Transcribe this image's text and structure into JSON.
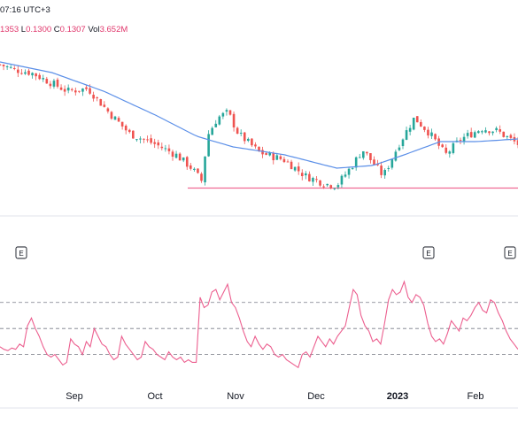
{
  "header": {
    "time": "07:16 UTC+3",
    "open_partial": "1353",
    "low_label": "L",
    "low": "0.1300",
    "close_label": "C",
    "close": "0.1307",
    "vol_label": "Vol",
    "vol": "3.652M"
  },
  "colors": {
    "up": "#26a69a",
    "down": "#ef5350",
    "ma": "#5b8fe8",
    "support": "#f06a93",
    "oscillator": "#ec5f8f",
    "level": "#787b86"
  },
  "chart_data": [
    {
      "type": "candlestick",
      "title": "",
      "x_ticks": [
        "Sep",
        "Oct",
        "Nov",
        "Dec",
        "2023",
        "Feb"
      ],
      "earnings_markers": [
        "E",
        "E",
        "E"
      ],
      "series": [
        {
          "values": [
            [
              0.0,
              0.164
            ],
            [
              0.03,
              0.162
            ],
            [
              0.06,
              0.161
            ],
            [
              0.1,
              0.157
            ],
            [
              0.13,
              0.154
            ],
            [
              0.17,
              0.155
            ],
            [
              0.21,
              0.146
            ],
            [
              0.25,
              0.138
            ],
            [
              0.3,
              0.134
            ],
            [
              0.34,
              0.13
            ],
            [
              0.37,
              0.125
            ],
            [
              0.39,
              0.12
            ],
            [
              0.4,
              0.137
            ],
            [
              0.42,
              0.144
            ],
            [
              0.44,
              0.146
            ],
            [
              0.46,
              0.138
            ],
            [
              0.5,
              0.131
            ],
            [
              0.55,
              0.128
            ],
            [
              0.59,
              0.122
            ],
            [
              0.63,
              0.119
            ],
            [
              0.65,
              0.1185
            ],
            [
              0.68,
              0.126
            ],
            [
              0.7,
              0.132
            ],
            [
              0.74,
              0.122
            ],
            [
              0.77,
              0.134
            ],
            [
              0.8,
              0.144
            ],
            [
              0.83,
              0.138
            ],
            [
              0.86,
              0.13
            ],
            [
              0.89,
              0.136
            ],
            [
              0.93,
              0.14
            ],
            [
              0.96,
              0.139
            ],
            [
              1.0,
              0.134
            ]
          ]
        },
        {
          "values": [
            [
              0.0,
              0.165
            ],
            [
              0.1,
              0.161
            ],
            [
              0.2,
              0.154
            ],
            [
              0.3,
              0.145
            ],
            [
              0.38,
              0.137
            ],
            [
              0.45,
              0.133
            ],
            [
              0.55,
              0.13
            ],
            [
              0.65,
              0.125
            ],
            [
              0.72,
              0.126
            ],
            [
              0.78,
              0.13
            ],
            [
              0.85,
              0.135
            ],
            [
              0.92,
              0.135
            ],
            [
              1.0,
              0.136
            ]
          ]
        }
      ],
      "support_level": 0.1175
    },
    {
      "type": "line",
      "title": "",
      "levels": [
        70,
        50,
        30
      ],
      "values": [
        36,
        34,
        33,
        35,
        34,
        38,
        36,
        52,
        58,
        50,
        44,
        36,
        30,
        28,
        30,
        26,
        22,
        24,
        42,
        38,
        36,
        30,
        40,
        36,
        50,
        44,
        38,
        36,
        30,
        26,
        28,
        44,
        38,
        34,
        30,
        26,
        28,
        40,
        36,
        34,
        30,
        28,
        26,
        32,
        28,
        26,
        28,
        24,
        26,
        24,
        24,
        74,
        66,
        68,
        78,
        80,
        72,
        78,
        84,
        70,
        66,
        58,
        48,
        40,
        36,
        44,
        38,
        34,
        38,
        36,
        30,
        28,
        30,
        26,
        24,
        22,
        20,
        30,
        32,
        28,
        36,
        44,
        40,
        36,
        42,
        38,
        44,
        48,
        52,
        66,
        80,
        76,
        60,
        52,
        48,
        40,
        42,
        38,
        54,
        72,
        80,
        76,
        78,
        86,
        74,
        70,
        76,
        74,
        68,
        54,
        44,
        40,
        42,
        38,
        46,
        56,
        52,
        48,
        58,
        56,
        60,
        66,
        70,
        64,
        62,
        72,
        70,
        62,
        56,
        48,
        42,
        38,
        34
      ]
    }
  ]
}
